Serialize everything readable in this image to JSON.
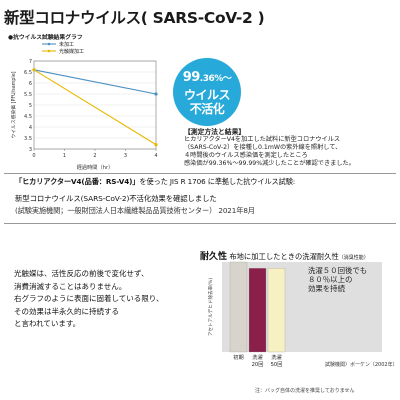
{
  "title": "新型コロナウイルス( SARS-CoV-2 )",
  "chart_data": [
    {
      "type": "line",
      "title": "●抗ウイルス試験結果グラフ",
      "xlabel": "経過時間（hr）",
      "ylabel": "ウイルス感染価 [PFU/sample]",
      "x": [
        0,
        4
      ],
      "xticks": [
        "0",
        "1",
        "2",
        "3",
        "4"
      ],
      "yticks": [
        "7",
        "6.5",
        "6",
        "5.5",
        "5",
        "4.5",
        "4",
        "3.5",
        "3"
      ],
      "ylim": [
        3,
        7
      ],
      "xlim": [
        0,
        4
      ],
      "legend_position": "top-right",
      "series": [
        {
          "name": "未加工",
          "values": [
            6.6,
            5.5
          ],
          "color": "#4a90c4"
        },
        {
          "name": "光触媒加工",
          "values": [
            6.6,
            3.2
          ],
          "color": "#e8b800"
        }
      ]
    },
    {
      "type": "bar",
      "categories": [
        "初期",
        "洗濯20回",
        "洗濯50回"
      ],
      "category_lines": [
        [
          "初期"
        ],
        [
          "洗濯",
          "20回"
        ],
        [
          "洗濯",
          "50回"
        ]
      ],
      "values": [
        100,
        93,
        93
      ],
      "ylabel": "アセトアルデヒド除去率(%)",
      "ylim": [
        0,
        100
      ],
      "colors": [
        "#d8d3cb",
        "#8a1f4a",
        "#f6f0c2"
      ],
      "annotation": [
        "洗濯５０回後でも",
        "８０％以上の",
        "効果を持続"
      ]
    }
  ],
  "badge": {
    "line1_big": "99",
    "line1_small": ".36%",
    "line1_tail": "～",
    "line2": "ウイルス",
    "line3": "不活化"
  },
  "results": {
    "heading": "【測定方法と結果】",
    "lines": [
      "ヒカリアクターV4を加工した試料に新型コロナウイルス",
      "（SARS-CoV-2）を接種し0.1mWの紫外線を照射して、",
      "４時間後のウイルス感染価を測定したところ",
      "感染価が99.36%～99.99%減少したことが確認できました。"
    ]
  },
  "test": {
    "line1_bold": "「ヒカリアクターV4(品番：RS-V4)」",
    "line1_rest": "を使った JIS R 1706 に準拠した抗ウイルス試験:",
    "line2": "新型コロナウイルス(SARS-CoV-2)不活化効果を確認しました",
    "line3": "(試験実施機関；一般財団法人日本繊維製品品質技術センター） 2021年8月"
  },
  "photocat": [
    "光触媒は、活性反応の前後で変化せず、",
    "消費消滅することはありません。",
    "右グラフのように表面に固着している限り、",
    "その効果は半永久的に持続する",
    "と言われています。"
  ],
  "durability": {
    "title_big": "耐久性",
    "title_rest": " 布地に加工したときの洗濯耐久性",
    "title_tiny": "（消臭性能）",
    "caption": "試験機関）ボーケン（2002年）"
  },
  "footnote": "注：バッグ自体の洗濯を推奨しておりません"
}
